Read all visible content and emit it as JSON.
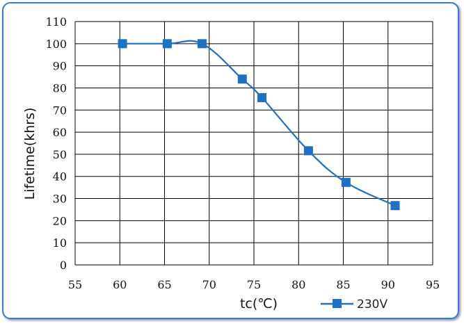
{
  "chart_data": {
    "type": "line",
    "title": "",
    "xlabel": "tc(℃)",
    "ylabel": "Lifetime(khrs)",
    "xlim": [
      55,
      95
    ],
    "ylim": [
      0,
      110
    ],
    "xticks": [
      55,
      60,
      65,
      70,
      75,
      80,
      85,
      90,
      95
    ],
    "yticks": [
      0,
      10,
      20,
      30,
      40,
      50,
      60,
      70,
      80,
      90,
      100,
      110
    ],
    "grid": true,
    "legend": "bottom-right",
    "series": [
      {
        "name": "230V",
        "color": "#1f6fc4",
        "marker": "square",
        "smooth": true,
        "x": [
          60.3,
          65.3,
          69.2,
          73.7,
          75.9,
          81.1,
          85.3,
          90.8
        ],
        "y": [
          100,
          100,
          100,
          84,
          75.6,
          51.6,
          37.3,
          26.8
        ]
      }
    ]
  }
}
